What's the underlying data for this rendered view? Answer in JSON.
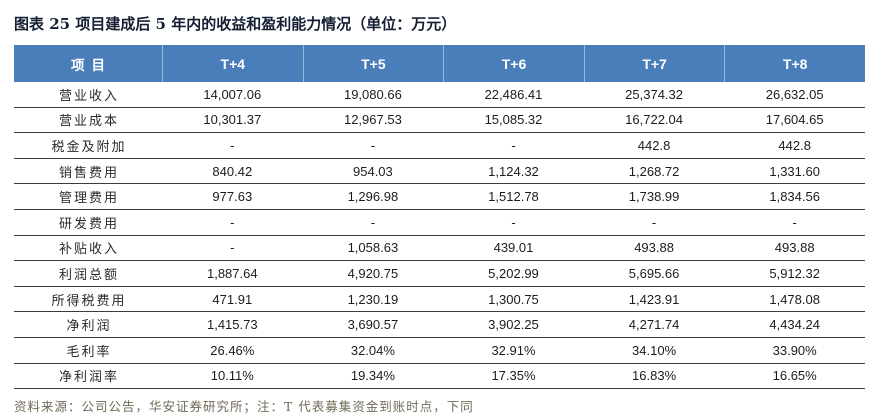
{
  "title": "图表 25 项目建成后 5 年内的收益和盈利能力情况（单位：万元）",
  "source_note": "资料来源：公司公告，华安证券研究所；注：T 代表募集资金到账时点，下同",
  "colors": {
    "header_bg": "#4a7ebb",
    "header_text": "#ffffff",
    "row_border": "#3c3c3c",
    "title_text": "#141f33",
    "source_text": "#6f6a58"
  },
  "table": {
    "columns": [
      "项目",
      "T+4",
      "T+5",
      "T+6",
      "T+7",
      "T+8"
    ],
    "rows": [
      {
        "label": "营业收入",
        "values": [
          "14,007.06",
          "19,080.66",
          "22,486.41",
          "25,374.32",
          "26,632.05"
        ]
      },
      {
        "label": "营业成本",
        "values": [
          "10,301.37",
          "12,967.53",
          "15,085.32",
          "16,722.04",
          "17,604.65"
        ]
      },
      {
        "label": "税金及附加",
        "values": [
          "-",
          "-",
          "-",
          "442.8",
          "442.8"
        ]
      },
      {
        "label": "销售费用",
        "values": [
          "840.42",
          "954.03",
          "1,124.32",
          "1,268.72",
          "1,331.60"
        ]
      },
      {
        "label": "管理费用",
        "values": [
          "977.63",
          "1,296.98",
          "1,512.78",
          "1,738.99",
          "1,834.56"
        ]
      },
      {
        "label": "研发费用",
        "values": [
          "-",
          "-",
          "-",
          "-",
          "-"
        ]
      },
      {
        "label": "补贴收入",
        "values": [
          "-",
          "1,058.63",
          "439.01",
          "493.88",
          "493.88"
        ]
      },
      {
        "label": "利润总额",
        "values": [
          "1,887.64",
          "4,920.75",
          "5,202.99",
          "5,695.66",
          "5,912.32"
        ]
      },
      {
        "label": "所得税费用",
        "values": [
          "471.91",
          "1,230.19",
          "1,300.75",
          "1,423.91",
          "1,478.08"
        ]
      },
      {
        "label": "净利润",
        "values": [
          "1,415.73",
          "3,690.57",
          "3,902.25",
          "4,271.74",
          "4,434.24"
        ]
      },
      {
        "label": "毛利率",
        "values": [
          "26.46%",
          "32.04%",
          "32.91%",
          "34.10%",
          "33.90%"
        ]
      },
      {
        "label": "净利润率",
        "values": [
          "10.11%",
          "19.34%",
          "17.35%",
          "16.83%",
          "16.65%"
        ]
      }
    ]
  }
}
